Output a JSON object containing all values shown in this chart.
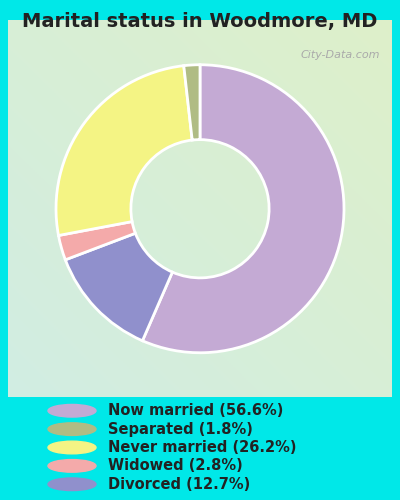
{
  "title": "Marital status in Woodmore, MD",
  "slices": [
    {
      "label": "Now married (56.6%)",
      "value": 56.6,
      "color": "#c4aad4"
    },
    {
      "label": "Separated (1.8%)",
      "value": 1.8,
      "color": "#b0bc84"
    },
    {
      "label": "Never married (26.2%)",
      "value": 26.2,
      "color": "#f4f484"
    },
    {
      "label": "Widowed (2.8%)",
      "value": 2.8,
      "color": "#f4aaaa"
    },
    {
      "label": "Divorced (12.7%)",
      "value": 12.7,
      "color": "#9090cc"
    }
  ],
  "slice_order": [
    0,
    4,
    3,
    2,
    1
  ],
  "bg_outer": "#00e8e8",
  "title_fontsize": 14,
  "legend_fontsize": 10.5,
  "donut_width": 0.52,
  "startangle": 90,
  "watermark": "City-Data.com",
  "watermark_fontsize": 8
}
